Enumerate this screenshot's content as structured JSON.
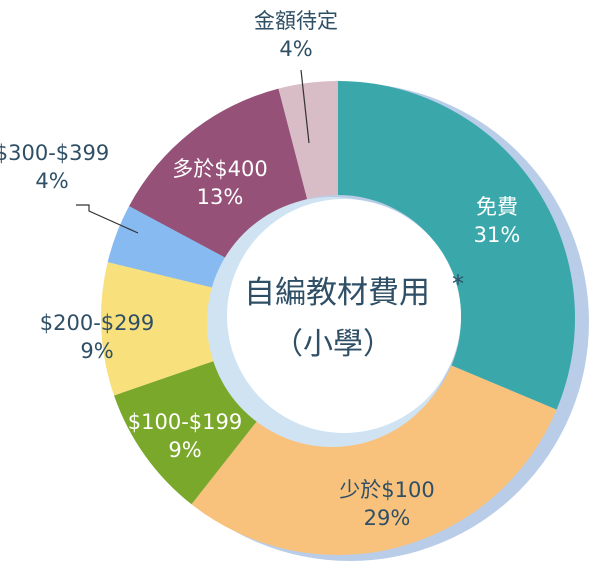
{
  "chart_data": {
    "type": "pie",
    "title": "自編教材費用",
    "title_mark": "*",
    "subtitle": "（小學）",
    "start_angle_deg": 0,
    "direction": "clockwise",
    "slices": [
      {
        "label": "免費",
        "value": 31,
        "value_text": "31%",
        "color": "#3aa8ab",
        "text_color": "#ffffff"
      },
      {
        "label": "少於$100",
        "value": 29,
        "value_text": "29%",
        "color": "#f8c27c",
        "text_color": "#2f4f66"
      },
      {
        "label": "$100-$199",
        "value": 9,
        "value_text": "9%",
        "color": "#7aa82a",
        "text_color": "#ffffff"
      },
      {
        "label": "$200-$299",
        "value": 9,
        "value_text": "9%",
        "color": "#f8e07c",
        "text_color": "#2f4f66"
      },
      {
        "label": "$300-$399",
        "value": 4,
        "value_text": "4%",
        "color": "#86baf0",
        "text_color": "#2f4f66"
      },
      {
        "label": "多於$400",
        "value": 13,
        "value_text": "13%",
        "color": "#955177",
        "text_color": "#ffffff"
      },
      {
        "label": "金額待定",
        "value": 4,
        "value_text": "4%",
        "color": "#d8bcc6",
        "text_color": "#2f4f66"
      }
    ],
    "colors": {
      "outer_shadow": "#b9cde8",
      "inner_shadow": "#cfe3f2",
      "text_dark": "#2f4f66"
    }
  }
}
